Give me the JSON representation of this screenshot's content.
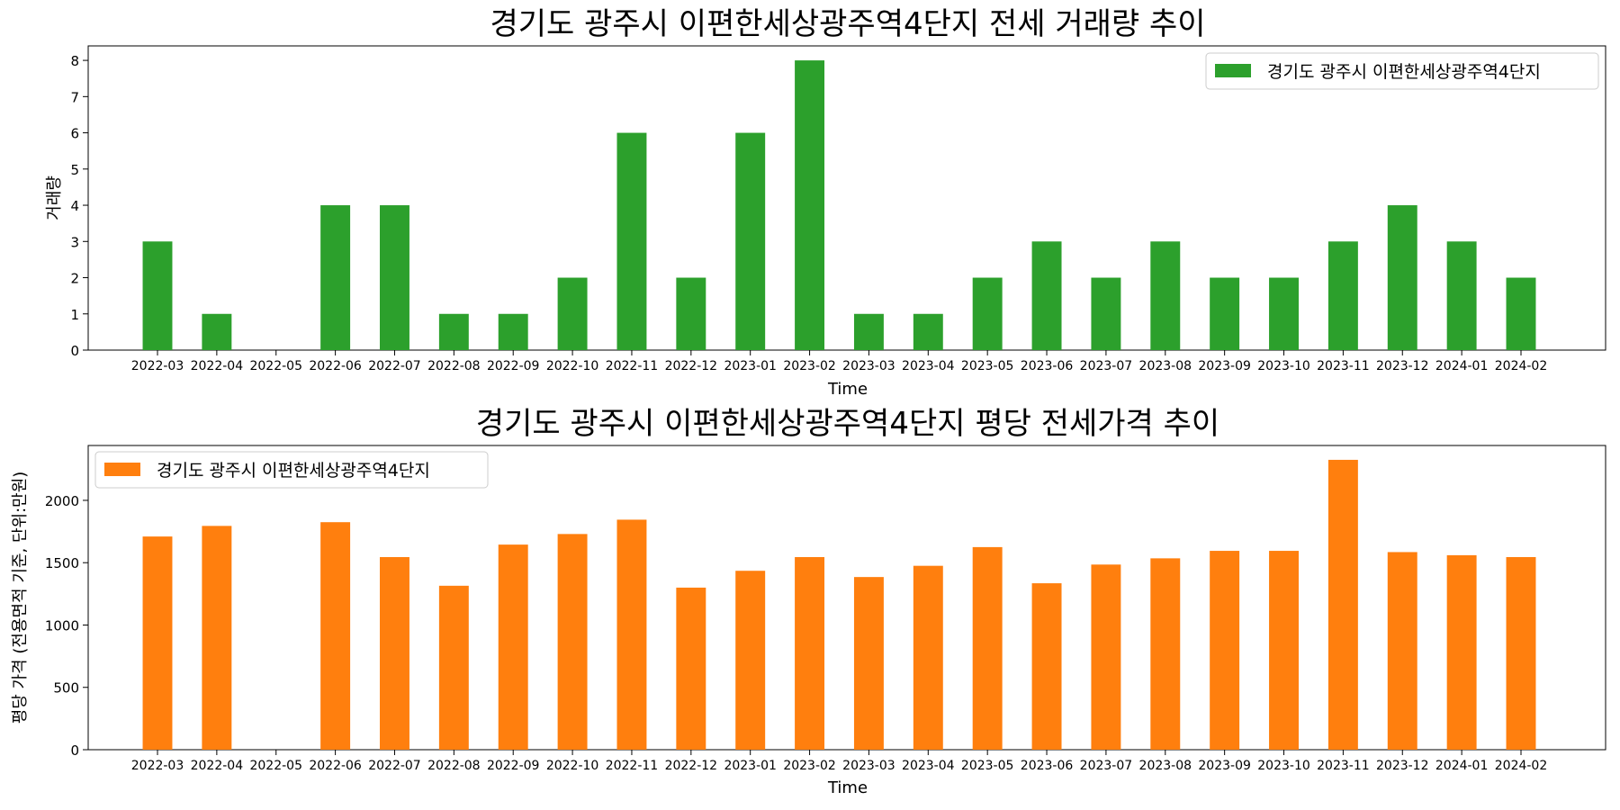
{
  "chart_data": [
    {
      "type": "bar",
      "title": "경기도 광주시 이편한세상광주역4단지 전세 거래량 추이",
      "xlabel": "Time",
      "ylabel": "거래량",
      "categories": [
        "2022-03",
        "2022-04",
        "2022-05",
        "2022-06",
        "2022-07",
        "2022-08",
        "2022-09",
        "2022-10",
        "2022-11",
        "2022-12",
        "2023-01",
        "2023-02",
        "2023-03",
        "2023-04",
        "2023-05",
        "2023-06",
        "2023-07",
        "2023-08",
        "2023-09",
        "2023-10",
        "2023-11",
        "2023-12",
        "2024-01",
        "2024-02"
      ],
      "series": [
        {
          "name": "경기도 광주시 이편한세상광주역4단지",
          "color": "#2ca02c",
          "values": [
            3,
            1,
            0,
            4,
            4,
            1,
            1,
            2,
            6,
            2,
            6,
            8,
            1,
            1,
            2,
            3,
            2,
            3,
            2,
            2,
            3,
            4,
            3,
            2
          ]
        }
      ],
      "ylim": [
        0,
        8.4
      ],
      "yticks": [
        0,
        1,
        2,
        3,
        4,
        5,
        6,
        7,
        8
      ],
      "legend": "top-right",
      "grid": false
    },
    {
      "type": "bar",
      "title": "경기도 광주시 이편한세상광주역4단지 평당 전세가격 추이",
      "xlabel": "Time",
      "ylabel": "평당 가격 (전용면적 기준, 단위:만원)",
      "categories": [
        "2022-03",
        "2022-04",
        "2022-05",
        "2022-06",
        "2022-07",
        "2022-08",
        "2022-09",
        "2022-10",
        "2022-11",
        "2022-12",
        "2023-01",
        "2023-02",
        "2023-03",
        "2023-04",
        "2023-05",
        "2023-06",
        "2023-07",
        "2023-08",
        "2023-09",
        "2023-10",
        "2023-11",
        "2023-12",
        "2024-01",
        "2024-02"
      ],
      "series": [
        {
          "name": "경기도 광주시 이편한세상광주역4단지",
          "color": "#ff7f0e",
          "values": [
            1710,
            1795,
            null,
            1825,
            1545,
            1315,
            1645,
            1730,
            1845,
            1300,
            1435,
            1545,
            1385,
            1475,
            1625,
            1335,
            1485,
            1535,
            1595,
            1595,
            2325,
            1585,
            1560,
            1545
          ]
        }
      ],
      "ylim": [
        0,
        2440
      ],
      "yticks": [
        0,
        500,
        1000,
        1500,
        2000
      ],
      "legend": "top-left",
      "grid": false
    }
  ]
}
